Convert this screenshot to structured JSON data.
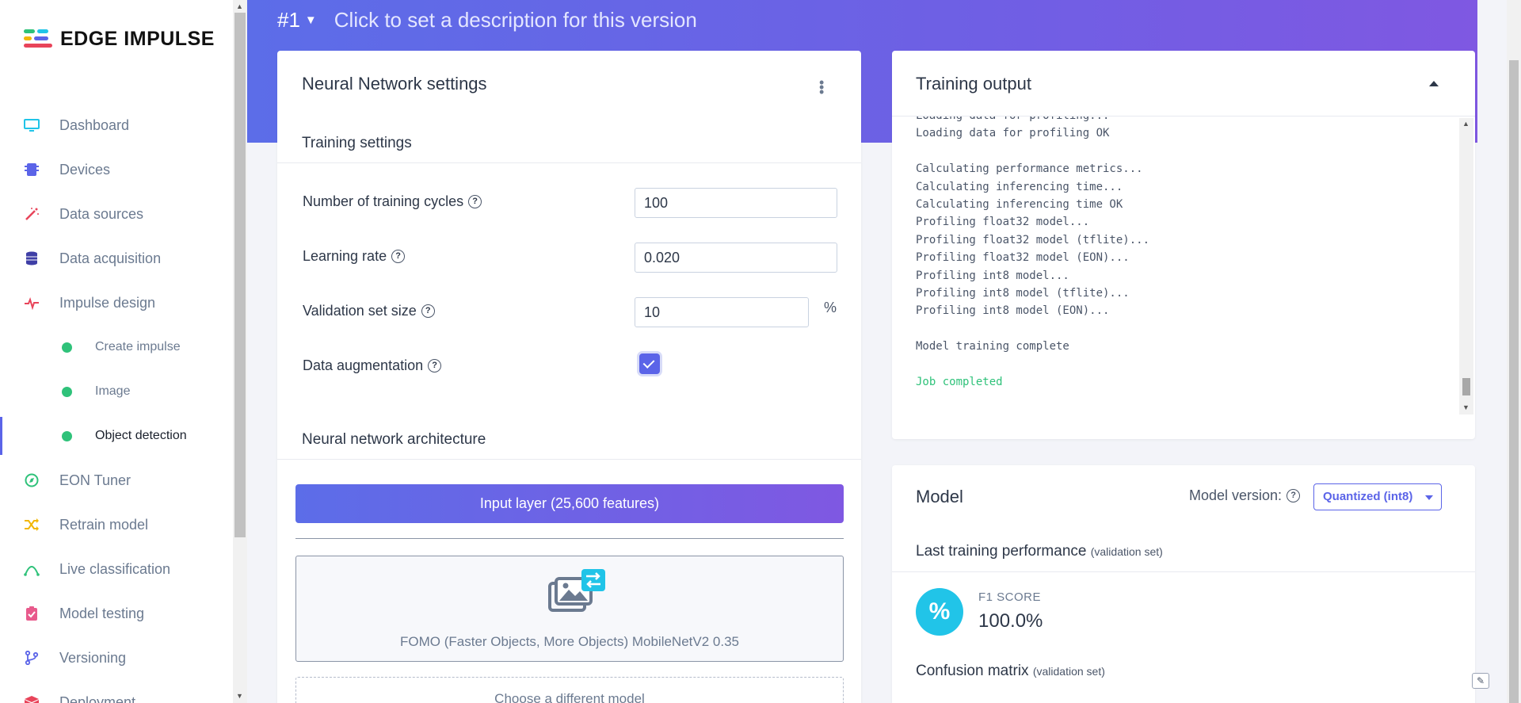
{
  "brand": {
    "name": "EDGE IMPULSE"
  },
  "sidebar": {
    "items": [
      {
        "label": "Dashboard",
        "icon": "monitor-icon",
        "color": "#20c4e8"
      },
      {
        "label": "Devices",
        "icon": "chip-icon",
        "color": "#5b64e8"
      },
      {
        "label": "Data sources",
        "icon": "wand-icon",
        "color": "#e8445a"
      },
      {
        "label": "Data acquisition",
        "icon": "database-icon",
        "color": "#3f3fa6"
      },
      {
        "label": "Impulse design",
        "icon": "pulse-icon",
        "color": "#e8445a"
      }
    ],
    "sub_items": [
      {
        "label": "Create impulse"
      },
      {
        "label": "Image"
      },
      {
        "label": "Object detection"
      }
    ],
    "items2": [
      {
        "label": "EON Tuner",
        "icon": "compass-icon",
        "color": "#2fc27a"
      },
      {
        "label": "Retrain model",
        "icon": "shuffle-icon",
        "color": "#f2b705"
      },
      {
        "label": "Live classification",
        "icon": "curve-icon",
        "color": "#2fc27a"
      },
      {
        "label": "Model testing",
        "icon": "clipboard-icon",
        "color": "#e85a8c"
      },
      {
        "label": "Versioning",
        "icon": "branch-icon",
        "color": "#5b64e8"
      },
      {
        "label": "Deployment",
        "icon": "box-icon",
        "color": "#e8445a"
      }
    ]
  },
  "header": {
    "version": "#1",
    "description": "Click to set a description for this version"
  },
  "nn_settings": {
    "title": "Neural Network settings",
    "training_title": "Training settings",
    "cycles_label": "Number of training cycles",
    "cycles_value": "100",
    "lr_label": "Learning rate",
    "lr_value": "0.020",
    "val_label": "Validation set size",
    "val_value": "10",
    "val_unit": "%",
    "aug_label": "Data augmentation",
    "aug_checked": true,
    "arch_title": "Neural network architecture",
    "input_layer": "Input layer (25,600 features)",
    "model_name": "FOMO (Faster Objects, More Objects) MobileNetV2 0.35",
    "choose_model": "Choose a different model"
  },
  "training_output": {
    "title": "Training output",
    "lines": [
      "Loading data for profiling...",
      "Loading data for profiling OK",
      "",
      "Calculating performance metrics...",
      "Calculating inferencing time...",
      "Calculating inferencing time OK",
      "Profiling float32 model...",
      "Profiling float32 model (tflite)...",
      "Profiling float32 model (EON)...",
      "Profiling int8 model...",
      "Profiling int8 model (tflite)...",
      "Profiling int8 model (EON)...",
      "",
      "Model training complete",
      "",
      "Job completed"
    ]
  },
  "model": {
    "title": "Model",
    "version_label": "Model version:",
    "version_value": "Quantized (int8)",
    "ltp_title": "Last training performance",
    "ltp_sub": "(validation set)",
    "f1_icon": "%",
    "f1_label": "F1 SCORE",
    "f1_value": "100.0%",
    "cm_title": "Confusion matrix",
    "cm_sub": "(validation set)"
  }
}
